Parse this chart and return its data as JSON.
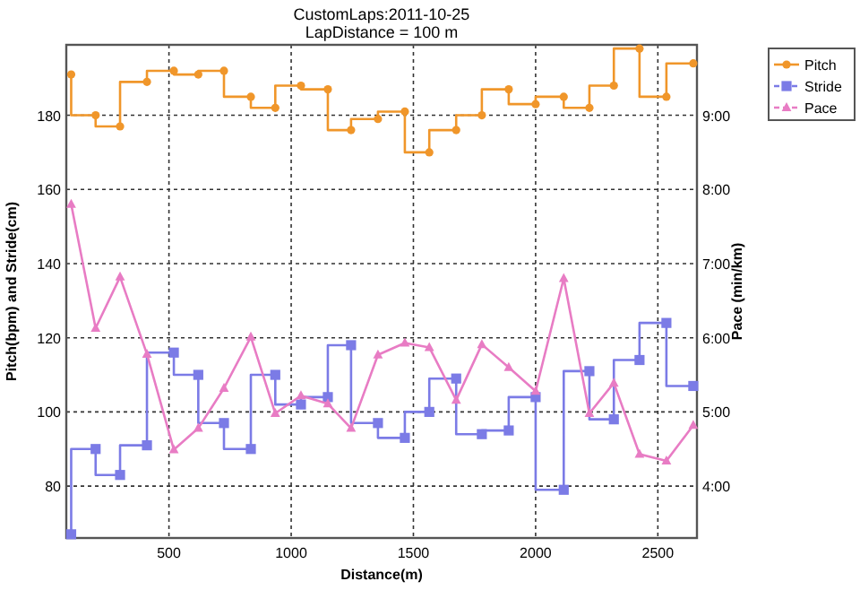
{
  "chart_data": {
    "type": "step",
    "title": "CustomLaps:2011-10-25",
    "subtitle": "LapDistance = 100 m",
    "xlabel": "Distance(m)",
    "ylabel": "Pitch(bpm) and Stride(cm)",
    "y2label": "Pace (min/km)",
    "x": [
      100,
      200,
      300,
      410,
      520,
      620,
      725,
      835,
      935,
      1040,
      1150,
      1245,
      1355,
      1465,
      1565,
      1675,
      1780,
      1890,
      2000,
      2115,
      2220,
      2320,
      2425,
      2535,
      2645
    ],
    "series": [
      {
        "name": "Pitch",
        "color": "#f0962a",
        "marker": "circle",
        "values": [
          191,
          180,
          177,
          189,
          192,
          191,
          192,
          185,
          182,
          188,
          187,
          176,
          179,
          181,
          170,
          176,
          180,
          187,
          183,
          185,
          182,
          188,
          198,
          185,
          194
        ]
      },
      {
        "name": "Stride",
        "color": "#7b7be6",
        "marker": "square",
        "values": [
          67,
          90,
          83,
          91,
          116,
          110,
          97,
          90,
          110,
          102,
          104,
          118,
          97,
          93,
          100,
          109,
          94,
          95,
          104,
          79,
          111,
          98,
          114,
          124,
          107
        ]
      },
      {
        "name": "Pace",
        "type": "line",
        "axis": "y2",
        "color": "#e87cc4",
        "marker": "triangle",
        "values": [
          7.8,
          6.13,
          6.82,
          5.78,
          4.49,
          4.78,
          5.32,
          6.01,
          4.98,
          5.22,
          5.11,
          4.78,
          5.77,
          5.93,
          5.87,
          5.16,
          5.91,
          5.6,
          5.28,
          6.8,
          4.98,
          5.39,
          4.43,
          4.34,
          4.82
        ]
      }
    ],
    "xlim": [
      80,
      2660
    ],
    "xticks": [
      500,
      1000,
      1500,
      2000,
      2500
    ],
    "ylim": [
      66,
      199
    ],
    "yticks": [
      80,
      100,
      120,
      140,
      160,
      180
    ],
    "y2lim": [
      3.3,
      9.95
    ],
    "y2ticks": [
      {
        "value": 4,
        "label": "4:00"
      },
      {
        "value": 5,
        "label": "5:00"
      },
      {
        "value": 6,
        "label": "6:00"
      },
      {
        "value": 7,
        "label": "7:00"
      },
      {
        "value": 8,
        "label": "8:00"
      },
      {
        "value": 9,
        "label": "9:00"
      }
    ],
    "grid": true,
    "legend": "right",
    "line_style": "solid"
  }
}
